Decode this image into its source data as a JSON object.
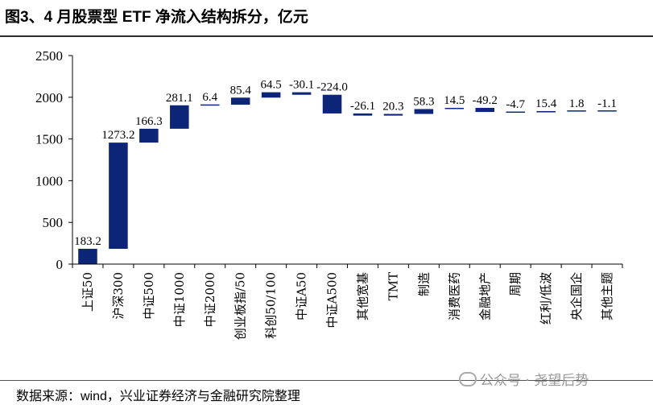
{
  "title": "图3、4 月股票型 ETF 净流入结构拆分，亿元",
  "source": "数据来源：wind，兴业证券经济与金融研究院整理",
  "watermark": "公众号 · 尧望后势",
  "colors": {
    "bar": "#0c2577",
    "axis": "#000000"
  },
  "chart_data": {
    "type": "waterfall",
    "title": "4 月股票型 ETF 净流入结构拆分，亿元",
    "ylim": [
      0,
      2500
    ],
    "yticks": [
      0,
      500,
      1000,
      1500,
      2000,
      2500
    ],
    "categories": [
      "上证50",
      "沪深300",
      "中证500",
      "中证1000",
      "中证2000",
      "创业板指/50",
      "科创50/100",
      "中证A50",
      "中证A500",
      "其他宽基",
      "TMT",
      "制造",
      "消费医药",
      "金融地产",
      "周期",
      "红利/低波",
      "央企国企",
      "其他主题"
    ],
    "values": [
      183.2,
      1273.2,
      166.3,
      281.1,
      6.4,
      85.4,
      64.5,
      -30.1,
      -224.0,
      -26.1,
      20.3,
      58.3,
      14.5,
      -49.2,
      -4.7,
      15.4,
      1.8,
      -1.1
    ],
    "labels": [
      "183.2",
      "1273.2",
      "166.3",
      "281.1",
      "6.4",
      "85.4",
      "64.5",
      "-30.1",
      "-224.0",
      "-26.1",
      "20.3",
      "58.3",
      "14.5",
      "-49.2",
      "-4.7",
      "15.4",
      "1.8",
      "-1.1"
    ]
  }
}
